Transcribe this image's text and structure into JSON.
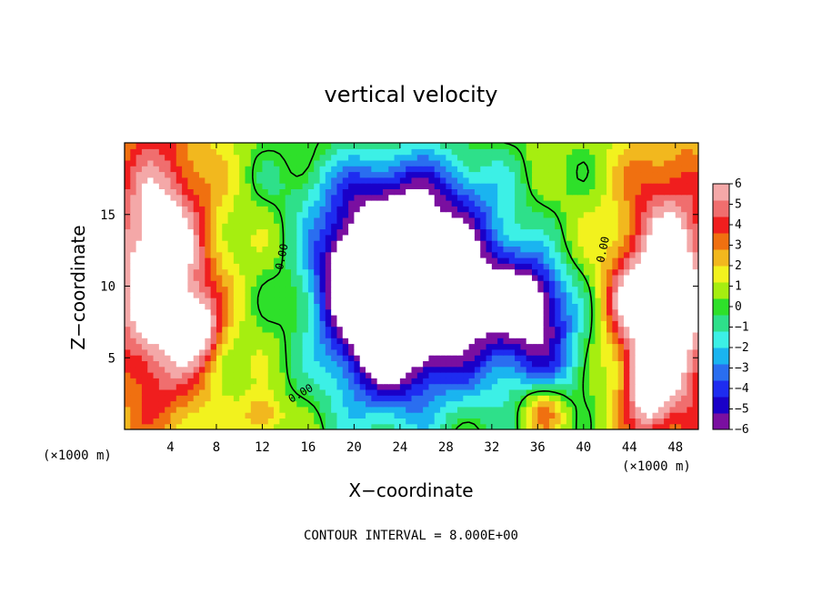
{
  "chart_data": {
    "type": "heatmap",
    "title": "vertical velocity",
    "xlabel": "X−coordinate",
    "ylabel": "Z−coordinate",
    "x_unit_label": "(×1000 m)",
    "y_unit_label": "(×1000 m)",
    "xlim": [
      0,
      50
    ],
    "ylim": [
      0,
      20
    ],
    "x_ticks": [
      4,
      8,
      12,
      16,
      20,
      24,
      28,
      32,
      36,
      40,
      44,
      48
    ],
    "y_ticks": [
      5,
      10,
      15
    ],
    "colorbar": {
      "ticks": [
        "6",
        "5",
        "4",
        "3",
        "2",
        "1",
        "0",
        "−1",
        "−2",
        "−3",
        "−4",
        "−5",
        "−6"
      ],
      "min": -6,
      "max": 6,
      "colors": [
        "#7a0fa0",
        "#1a00c8",
        "#1e2cf0",
        "#2a6ef0",
        "#1ab4f0",
        "#3cf0e6",
        "#2ee08a",
        "#2ee02a",
        "#a6ee10",
        "#f2f21e",
        "#f2b81e",
        "#f07010",
        "#f01e1e",
        "#f06e6e",
        "#f4a8a8"
      ]
    },
    "contour_interval_text": "CONTOUR INTERVAL = 8.000E+00",
    "contour_labels": [
      "0.00",
      "0.00",
      "0.00"
    ],
    "features": [
      {
        "kind": "updraft",
        "x": 3,
        "z": 11,
        "w": 7.5,
        "sx": 3.2,
        "sz": 7
      },
      {
        "kind": "updraft",
        "x": 47.5,
        "z": 9,
        "w": 7.5,
        "sx": 3.0,
        "sz": 7
      },
      {
        "kind": "updraft",
        "x": 6.5,
        "z": 7,
        "w": 4,
        "sx": 1.2,
        "sz": 1.6
      },
      {
        "kind": "updraft",
        "x": 44,
        "z": 9,
        "w": 3,
        "sx": 1.5,
        "sz": 2
      },
      {
        "kind": "updraft",
        "x": 36.5,
        "z": 1.5,
        "w": 3.5,
        "sx": 1.4,
        "sz": 1.3
      },
      {
        "kind": "updraft",
        "x": 12,
        "z": 1,
        "w": 2.5,
        "sx": 1.2,
        "sz": 1
      },
      {
        "kind": "updraft",
        "x": 45.5,
        "z": 3,
        "w": 4,
        "sx": 1.2,
        "sz": 2
      },
      {
        "kind": "downdraft",
        "x": 23,
        "z": 8,
        "w": -10,
        "sx": 3.8,
        "sz": 4.5
      },
      {
        "kind": "downdraft",
        "x": 26,
        "z": 12,
        "w": -5,
        "sx": 3.5,
        "sz": 4
      },
      {
        "kind": "downdraft",
        "x": 31,
        "z": 9,
        "w": -5,
        "sx": 3.0,
        "sz": 4.5
      },
      {
        "kind": "downdraft",
        "x": 35.5,
        "z": 9,
        "w": -6,
        "sx": 2.2,
        "sz": 2.2
      },
      {
        "kind": "downdraft",
        "x": 19.5,
        "z": 12,
        "w": -4,
        "sx": 2.5,
        "sz": 3
      },
      {
        "kind": "downdraft",
        "x": 37,
        "z": 5,
        "w": -3.5,
        "sx": 2.5,
        "sz": 2.5
      },
      {
        "kind": "downdraft",
        "x": 23,
        "z": 17,
        "w": -2.5,
        "sx": 6,
        "sz": 2
      }
    ]
  }
}
